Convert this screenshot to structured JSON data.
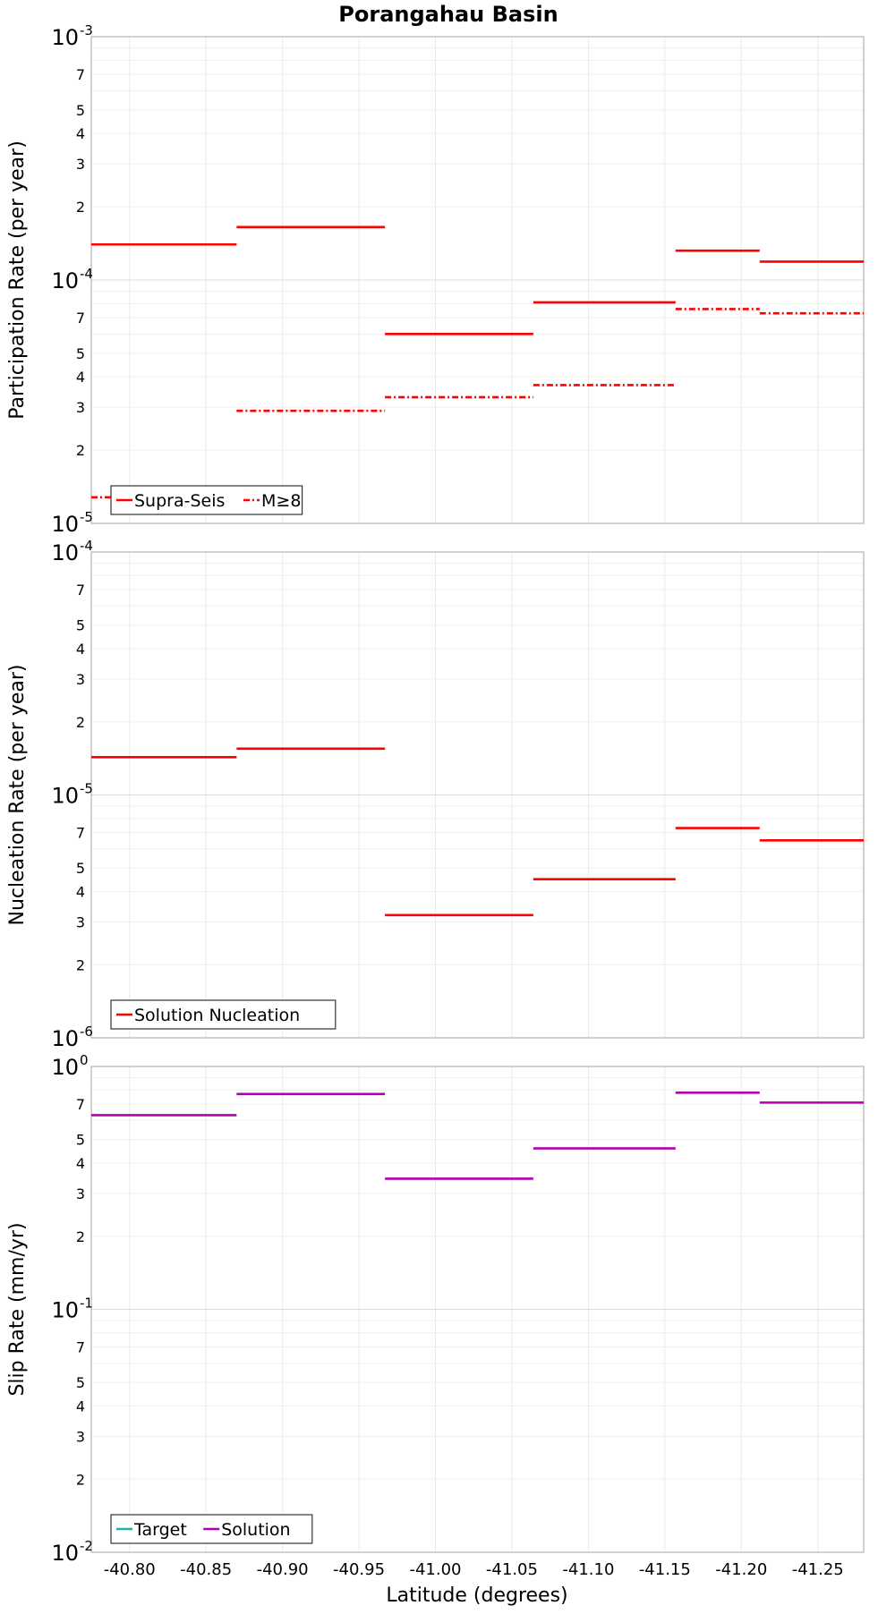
{
  "chart_data": [
    {
      "type": "line",
      "title": "Porangahau Basin",
      "xlabel": "",
      "ylabel": "Participation Rate (per year)",
      "yscale": "log",
      "ylim": [
        1e-05,
        0.001
      ],
      "xlim": [
        -40.775,
        -41.28
      ],
      "grid": true,
      "legend_placement": "bottom-left",
      "series": [
        {
          "name": "Supra-Seis",
          "color": "#ff0000",
          "style": "solid",
          "segments": [
            [
              -40.775,
              -40.87,
              0.00014
            ],
            [
              -40.87,
              -40.967,
              0.000165
            ],
            [
              -40.967,
              -41.064,
              6e-05
            ],
            [
              -41.064,
              -41.157,
              8.1e-05
            ],
            [
              -41.157,
              -41.212,
              0.000132
            ],
            [
              -41.212,
              -41.28,
              0.000119
            ]
          ]
        },
        {
          "name": "M≥8",
          "color": "#ff0000",
          "style": "dashdot",
          "segments": [
            [
              -40.775,
              -40.87,
              1.28e-05
            ],
            [
              -40.87,
              -40.967,
              2.9e-05
            ],
            [
              -40.967,
              -41.064,
              3.3e-05
            ],
            [
              -41.064,
              -41.157,
              3.7e-05
            ],
            [
              -41.157,
              -41.212,
              7.6e-05
            ],
            [
              -41.212,
              -41.28,
              7.3e-05
            ]
          ]
        }
      ]
    },
    {
      "type": "line",
      "title": "",
      "xlabel": "",
      "ylabel": "Nucleation Rate (per year)",
      "yscale": "log",
      "ylim": [
        1e-06,
        0.0001
      ],
      "xlim": [
        -40.775,
        -41.28
      ],
      "grid": true,
      "legend_placement": "bottom-left",
      "series": [
        {
          "name": "Solution Nucleation",
          "color": "#ff0000",
          "style": "solid",
          "segments": [
            [
              -40.775,
              -40.87,
              1.43e-05
            ],
            [
              -40.87,
              -40.967,
              1.55e-05
            ],
            [
              -40.967,
              -41.064,
              3.2e-06
            ],
            [
              -41.064,
              -41.157,
              4.5e-06
            ],
            [
              -41.157,
              -41.212,
              7.3e-06
            ],
            [
              -41.212,
              -41.28,
              6.5e-06
            ]
          ]
        }
      ]
    },
    {
      "type": "line",
      "title": "",
      "xlabel": "Latitude (degrees)",
      "ylabel": "Slip Rate (mm/yr)",
      "yscale": "log",
      "ylim": [
        0.01,
        1
      ],
      "xlim": [
        -40.775,
        -41.28
      ],
      "grid": true,
      "legend_placement": "bottom-left",
      "series": [
        {
          "name": "Target",
          "color": "#20b2aa",
          "style": "solid",
          "segments": []
        },
        {
          "name": "Solution",
          "color": "#b000b0",
          "style": "solid",
          "segments": [
            [
              -40.775,
              -40.87,
              0.63
            ],
            [
              -40.87,
              -40.967,
              0.77
            ],
            [
              -40.967,
              -41.064,
              0.345
            ],
            [
              -41.064,
              -41.157,
              0.46
            ],
            [
              -41.157,
              -41.212,
              0.78
            ],
            [
              -41.212,
              -41.28,
              0.71
            ]
          ]
        }
      ]
    }
  ],
  "x_ticks": [
    "-40.80",
    "-40.85",
    "-40.90",
    "-40.95",
    "-41.00",
    "-41.05",
    "-41.10",
    "-41.15",
    "-41.20",
    "-41.25"
  ],
  "x_tick_values": [
    -40.8,
    -40.85,
    -40.9,
    -40.95,
    -41.0,
    -41.05,
    -41.1,
    -41.15,
    -41.2,
    -41.25
  ],
  "y_major_labels": [
    [
      {
        "base": "10",
        "exp": "-3"
      },
      {
        "base": "10",
        "exp": "-4"
      },
      {
        "base": "10",
        "exp": "-5"
      }
    ],
    [
      {
        "base": "10",
        "exp": "-4"
      },
      {
        "base": "10",
        "exp": "-5"
      },
      {
        "base": "10",
        "exp": "-6"
      }
    ],
    [
      {
        "base": "10",
        "exp": "0"
      },
      {
        "base": "10",
        "exp": "-1"
      },
      {
        "base": "10",
        "exp": "-2"
      }
    ]
  ],
  "y_minor_labels": [
    "7",
    "5",
    "4",
    "3",
    "2"
  ],
  "y_minor_values": [
    7,
    5,
    4,
    3,
    2
  ]
}
